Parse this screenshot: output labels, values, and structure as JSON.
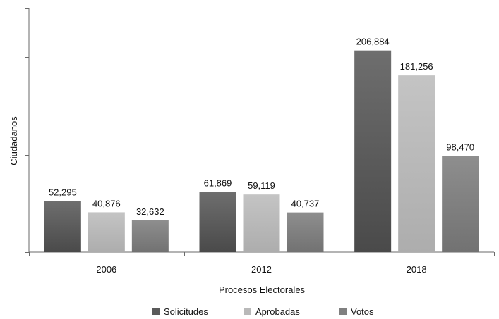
{
  "chart_data": {
    "type": "bar",
    "title": "",
    "xlabel": "Procesos Electorales",
    "ylabel": "Ciudadanos",
    "categories": [
      "2006",
      "2012",
      "2018"
    ],
    "ylim": [
      0,
      250000
    ],
    "grid": false,
    "legend": "bottom",
    "series": [
      {
        "name": "Solicitudes",
        "values": [
          52295,
          61869,
          206884
        ],
        "labels": [
          "52,295",
          "61,869",
          "206,884"
        ],
        "color": "#5a5a5a"
      },
      {
        "name": "Aprobadas",
        "values": [
          40876,
          59119,
          181256
        ],
        "labels": [
          "40,876",
          "59,119",
          "181,256"
        ],
        "color": "#b9b9b9"
      },
      {
        "name": "Votos",
        "values": [
          32632,
          40737,
          98470
        ],
        "labels": [
          "32,632",
          "40,737",
          "98,470"
        ],
        "color": "#808080"
      }
    ]
  }
}
